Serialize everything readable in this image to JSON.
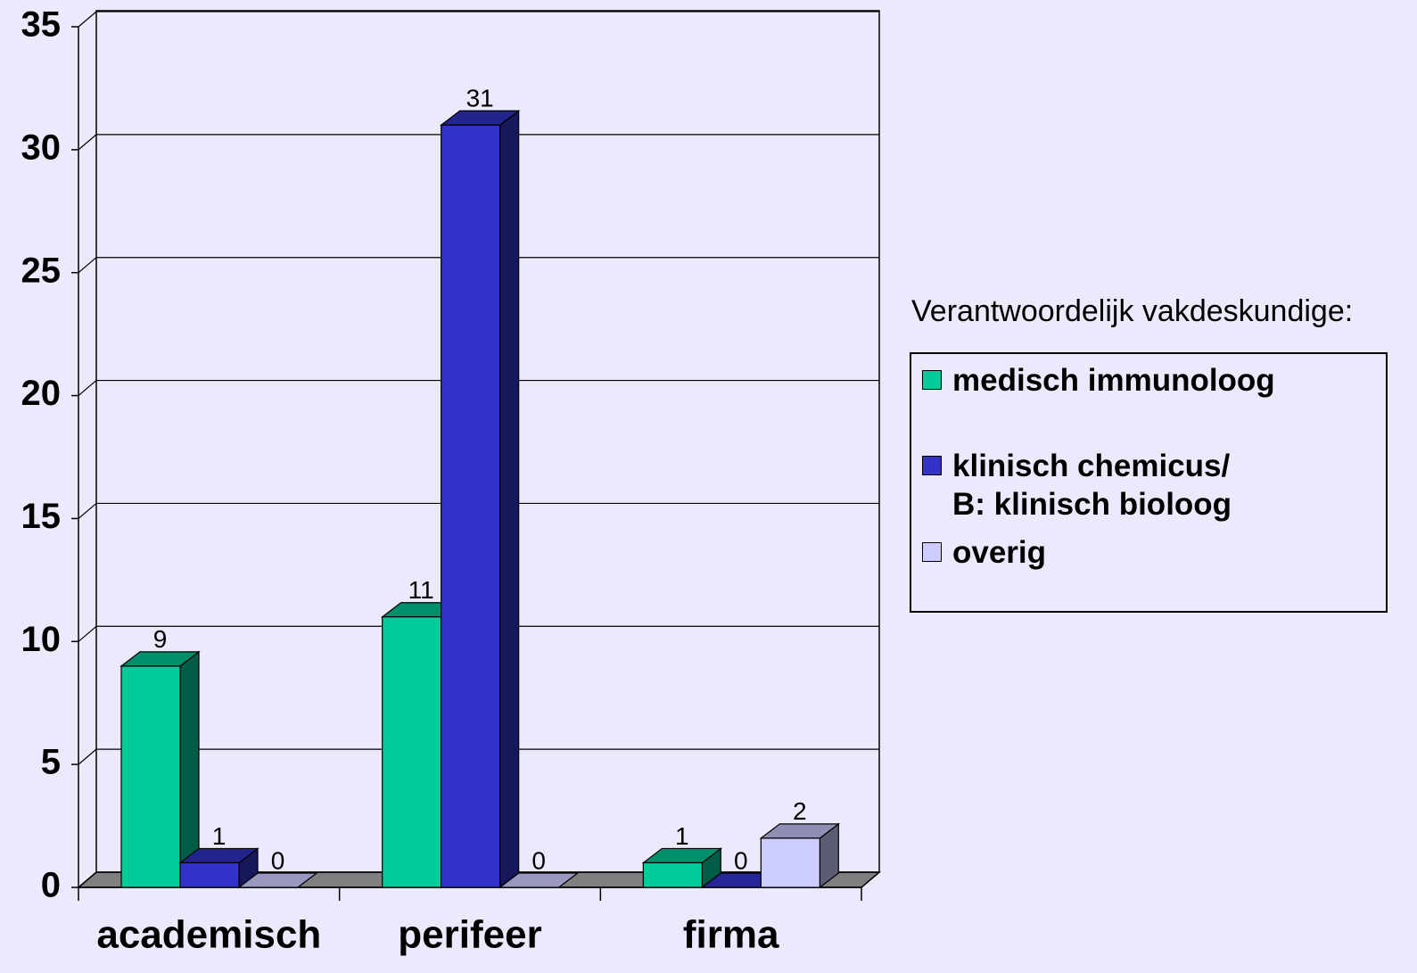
{
  "chart_data": {
    "type": "bar3d",
    "categories": [
      "academisch",
      "perifeer",
      "firma"
    ],
    "series": [
      {
        "name": "medisch immunoloog",
        "color": "#00CC99",
        "values": [
          9,
          11,
          1
        ]
      },
      {
        "name": "klinisch chemicus/\nB: klinisch bioloog",
        "color": "#3333CC",
        "values": [
          1,
          31,
          0
        ]
      },
      {
        "name": "overig",
        "color": "#CCCCFF",
        "values": [
          0,
          0,
          2
        ]
      }
    ],
    "ylim": [
      0,
      35
    ],
    "yticks": [
      0,
      5,
      10,
      15,
      20,
      25,
      30,
      35
    ],
    "grid": true,
    "legend_title": "Verantwoordelijk vakdeskundige:",
    "legend": "right"
  }
}
